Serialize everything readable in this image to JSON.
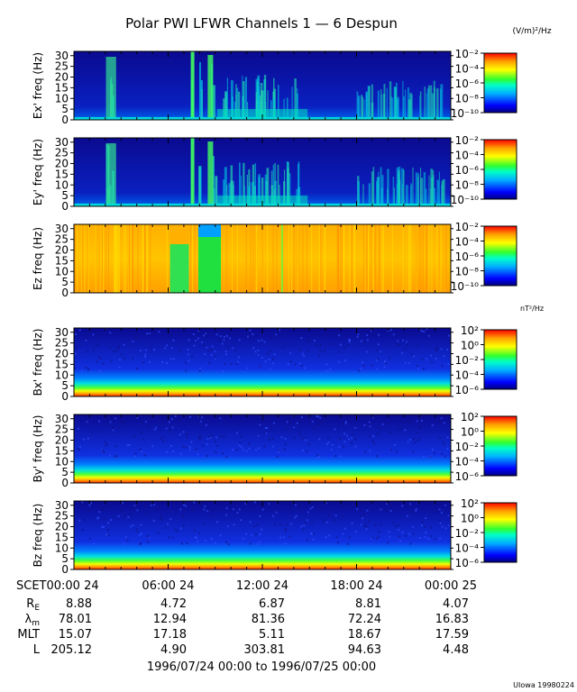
{
  "title": "Polar PWI LFWR Channels 1 — 6 Despun",
  "units": {
    "electric": "(V/m)²/Hz",
    "magnetic": "nT²/Hz"
  },
  "footer": {
    "credit": "UIowa 19980224",
    "date_range": "1996/07/24 00:00 to 1996/07/25 00:00"
  },
  "chart_data": {
    "type": "heatmap",
    "x_tick_labels": [
      "SCET00:00 24",
      "06:00 24",
      "12:00 24",
      "18:00 24",
      "00:00 25"
    ],
    "xlim": [
      "1996-07-24 00:00",
      "1996-07-25 00:00"
    ],
    "y_ticks": [
      "0",
      "5",
      "10",
      "15",
      "20",
      "25",
      "30"
    ],
    "ylim": [
      0,
      32
    ],
    "panels": [
      {
        "ylabel": "Ex' freq (Hz)",
        "channel": "Ex'",
        "colorbar_ticks": [
          "10⁻²",
          "10⁻⁴",
          "10⁻⁶",
          "10⁻⁸",
          "10⁻¹⁰"
        ],
        "colorbar_range": [
          1e-10,
          0.01
        ]
      },
      {
        "ylabel": "Ey' freq (Hz)",
        "channel": "Ey'",
        "colorbar_ticks": [
          "10⁻²",
          "10⁻⁴",
          "10⁻⁶",
          "10⁻⁸",
          "10⁻¹⁰"
        ],
        "colorbar_range": [
          1e-10,
          0.01
        ]
      },
      {
        "ylabel": "Ez freq (Hz)",
        "channel": "Ez",
        "colorbar_ticks": [
          "10⁻²",
          "10⁻⁴",
          "10⁻⁶",
          "10⁻⁸",
          "10⁻¹⁰"
        ],
        "colorbar_range": [
          1e-10,
          0.01
        ]
      },
      {
        "ylabel": "Bx' freq (Hz)",
        "channel": "Bx'",
        "colorbar_ticks": [
          "10²",
          "10⁰",
          "10⁻²",
          "10⁻⁴",
          "10⁻⁶"
        ],
        "colorbar_range": [
          1e-06,
          100.0
        ]
      },
      {
        "ylabel": "By' freq (Hz)",
        "channel": "By'",
        "colorbar_ticks": [
          "10²",
          "10⁰",
          "10⁻²",
          "10⁻⁴",
          "10⁻⁶"
        ],
        "colorbar_range": [
          1e-06,
          100.0
        ]
      },
      {
        "ylabel": "Bz freq (Hz)",
        "channel": "Bz",
        "colorbar_ticks": [
          "10²",
          "10⁰",
          "10⁻²",
          "10⁻⁴",
          "10⁻⁶"
        ],
        "colorbar_range": [
          1e-06,
          100.0
        ]
      }
    ],
    "ephemeris": [
      {
        "label": "R_E",
        "values": [
          "8.88",
          "4.72",
          "6.87",
          "8.81",
          "4.07"
        ]
      },
      {
        "label": "λ_m",
        "values": [
          "78.01",
          "12.94",
          "81.36",
          "72.24",
          "16.83"
        ]
      },
      {
        "label": "MLT",
        "values": [
          "15.07",
          "17.18",
          "5.11",
          "18.67",
          "17.59"
        ]
      },
      {
        "label": "L",
        "values": [
          "205.12",
          "4.90",
          "303.81",
          "94.63",
          "4.48"
        ]
      }
    ]
  }
}
